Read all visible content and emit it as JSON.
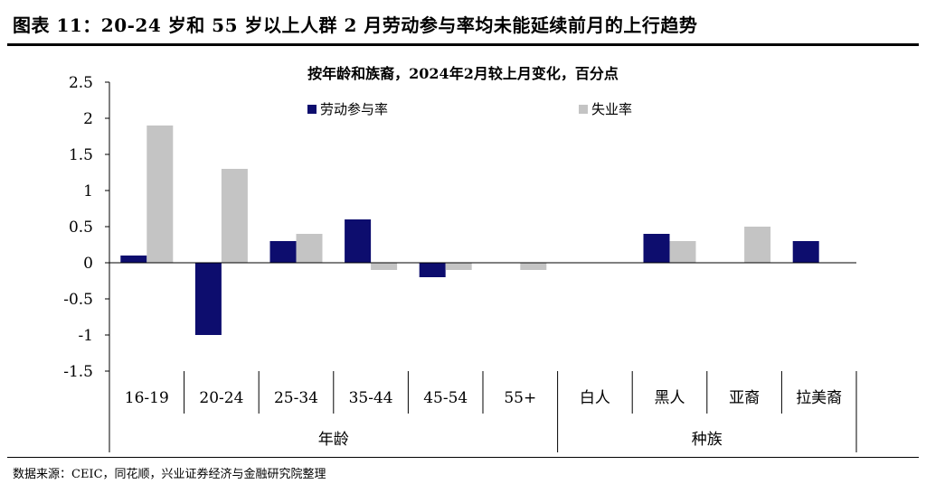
{
  "header": {
    "title": "图表 11：20-24 岁和 55 岁以上人群 2 月劳动参与率均未能延续前月的上行趋势"
  },
  "chart_data": {
    "type": "bar",
    "title": "按年龄和族裔，2024年2月较上月变化，百分点",
    "categories": [
      "16-19",
      "20-24",
      "25-34",
      "35-44",
      "45-54",
      "55+",
      "白人",
      "黑人",
      "亚裔",
      "拉美裔"
    ],
    "groups": [
      {
        "label": "年龄",
        "categories": [
          "16-19",
          "20-24",
          "25-34",
          "35-44",
          "45-54",
          "55+"
        ]
      },
      {
        "label": "种族",
        "categories": [
          "白人",
          "黑人",
          "亚裔",
          "拉美裔"
        ]
      }
    ],
    "series": [
      {
        "name": "劳动参与率",
        "color": "#0d0d6e",
        "values": [
          0.1,
          -1.0,
          0.3,
          0.6,
          -0.2,
          0.0,
          0.0,
          0.4,
          0.0,
          0.3
        ]
      },
      {
        "name": "失业率",
        "color": "#c4c4c4",
        "values": [
          1.9,
          1.3,
          0.4,
          -0.1,
          -0.1,
          -0.1,
          0.0,
          0.3,
          0.5,
          0.0
        ]
      }
    ],
    "ylim": [
      -1.5,
      2.5
    ],
    "yticks": [
      "2.5",
      "2",
      "1.5",
      "1",
      "0.5",
      "0",
      "-0.5",
      "-1",
      "-1.5"
    ],
    "legend_position": "top-center",
    "grid": false
  },
  "footer": {
    "source": "数据来源：CEIC，同花顺，兴业证券经济与金融研究院整理"
  }
}
